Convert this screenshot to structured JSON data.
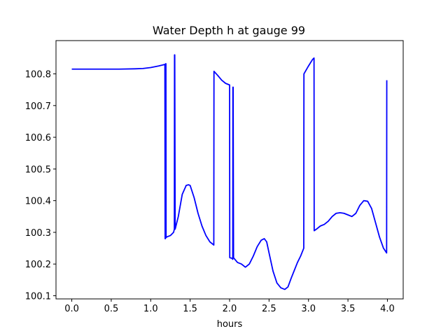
{
  "chart_data": {
    "type": "line",
    "title": "Water Depth h at gauge 99",
    "xlabel": "hours",
    "ylabel": "",
    "xlim": [
      -0.2,
      4.2
    ],
    "ylim": [
      100.09,
      100.905
    ],
    "xticks": [
      0.0,
      0.5,
      1.0,
      1.5,
      2.0,
      2.5,
      3.0,
      3.5,
      4.0
    ],
    "xtick_labels": [
      "0.0",
      "0.5",
      "1.0",
      "1.5",
      "2.0",
      "2.5",
      "3.0",
      "3.5",
      "4.0"
    ],
    "yticks": [
      100.1,
      100.2,
      100.3,
      100.4,
      100.5,
      100.6,
      100.7,
      100.8
    ],
    "ytick_labels": [
      "100.1",
      "100.2",
      "100.3",
      "100.4",
      "100.5",
      "100.6",
      "100.7",
      "100.8"
    ],
    "grid": false,
    "series": [
      {
        "color": "#0000ff",
        "x": [
          0.0,
          0.2,
          0.4,
          0.6,
          0.8,
          0.9,
          1.0,
          1.1,
          1.15,
          1.18,
          1.183,
          1.185,
          1.19,
          1.193,
          1.195,
          1.2,
          1.25,
          1.29,
          1.3,
          1.302,
          1.305,
          1.31,
          1.35,
          1.4,
          1.45,
          1.48,
          1.5,
          1.55,
          1.6,
          1.65,
          1.7,
          1.75,
          1.8,
          1.802,
          1.85,
          1.9,
          1.95,
          2.0,
          2.002,
          2.03,
          2.04,
          2.042,
          2.045,
          2.05,
          2.1,
          2.15,
          2.2,
          2.25,
          2.3,
          2.35,
          2.4,
          2.44,
          2.47,
          2.5,
          2.55,
          2.6,
          2.65,
          2.7,
          2.74,
          2.78,
          2.82,
          2.86,
          2.9,
          2.94,
          2.942,
          3.0,
          3.05,
          3.07,
          3.072,
          3.1,
          3.15,
          3.2,
          3.25,
          3.3,
          3.35,
          3.4,
          3.45,
          3.5,
          3.55,
          3.6,
          3.65,
          3.7,
          3.75,
          3.8,
          3.85,
          3.9,
          3.95,
          3.99,
          3.992
        ],
        "y": [
          100.815,
          100.815,
          100.815,
          100.815,
          100.816,
          100.817,
          100.82,
          100.825,
          100.828,
          100.83,
          100.28,
          100.28,
          100.832,
          100.832,
          100.283,
          100.285,
          100.29,
          100.3,
          100.31,
          100.86,
          100.86,
          100.31,
          100.35,
          100.42,
          100.448,
          100.45,
          100.448,
          100.41,
          100.36,
          100.32,
          100.29,
          100.27,
          100.26,
          100.808,
          100.795,
          100.78,
          100.77,
          100.765,
          100.22,
          100.218,
          100.215,
          100.758,
          100.758,
          100.22,
          100.205,
          100.2,
          100.19,
          100.2,
          100.225,
          100.255,
          100.275,
          100.28,
          100.27,
          100.235,
          100.178,
          100.14,
          100.125,
          100.12,
          100.128,
          100.155,
          100.18,
          100.205,
          100.225,
          100.25,
          100.8,
          100.825,
          100.845,
          100.85,
          100.305,
          100.31,
          100.32,
          100.325,
          100.335,
          100.35,
          100.36,
          100.362,
          100.36,
          100.355,
          100.35,
          100.36,
          100.385,
          100.4,
          100.398,
          100.375,
          100.33,
          100.285,
          100.25,
          100.235,
          100.78
        ]
      }
    ]
  }
}
